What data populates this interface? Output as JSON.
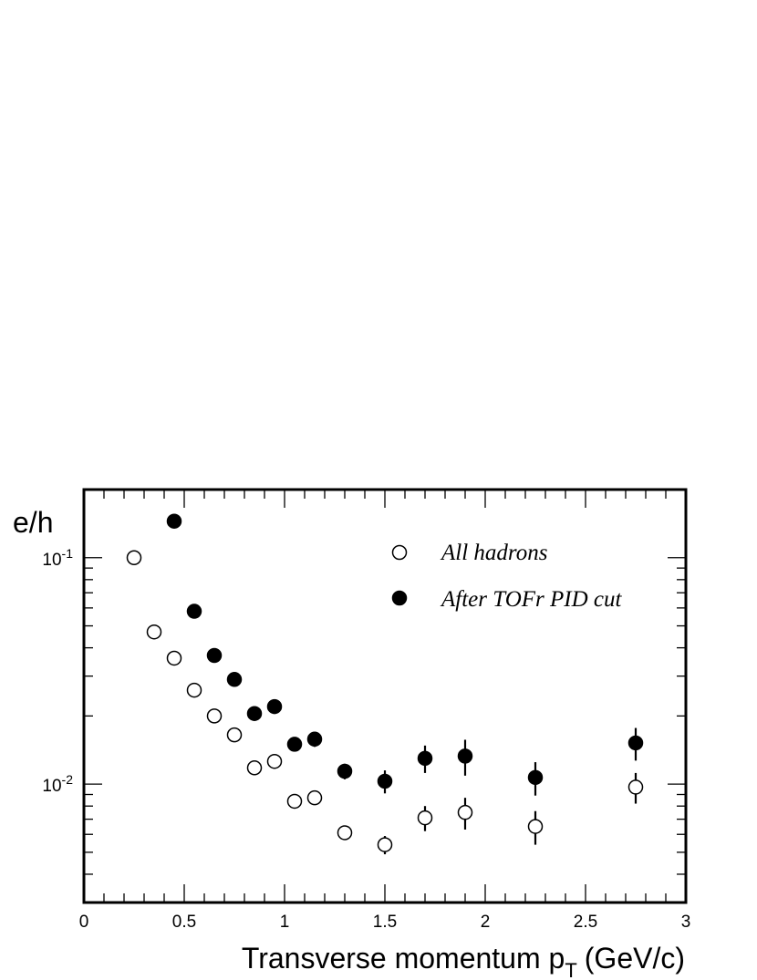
{
  "chart_data": {
    "type": "scatter",
    "title": "",
    "xlabel": "Transverse momentum p",
    "xlabel_subscript": "T",
    "xlabel_units": "(GeV/c)",
    "ylabel": "e/h",
    "xlim": [
      0,
      3
    ],
    "ylim": [
      0.003,
      0.2
    ],
    "yscale": "log",
    "grid": false,
    "legend_position": "top-right",
    "x_ticks": [
      {
        "value": 0,
        "label": "0"
      },
      {
        "value": 0.5,
        "label": "0.5"
      },
      {
        "value": 1,
        "label": "1"
      },
      {
        "value": 1.5,
        "label": "1.5"
      },
      {
        "value": 2,
        "label": "2"
      },
      {
        "value": 2.5,
        "label": "2.5"
      },
      {
        "value": 3,
        "label": "3"
      }
    ],
    "y_ticks": [
      {
        "value": 0.1,
        "base": "10",
        "exp": "-1"
      },
      {
        "value": 0.01,
        "base": "10",
        "exp": "-2"
      }
    ],
    "series": [
      {
        "name": "All hadrons",
        "marker": "open-circle",
        "color": "#000000",
        "points": [
          {
            "x": 0.25,
            "y": 0.1,
            "err": 0.002
          },
          {
            "x": 0.35,
            "y": 0.047,
            "err": 0.001
          },
          {
            "x": 0.45,
            "y": 0.036,
            "err": 0.001
          },
          {
            "x": 0.55,
            "y": 0.026,
            "err": 0.0006
          },
          {
            "x": 0.65,
            "y": 0.02,
            "err": 0.0005
          },
          {
            "x": 0.75,
            "y": 0.0165,
            "err": 0.0004
          },
          {
            "x": 0.85,
            "y": 0.0118,
            "err": 0.0003
          },
          {
            "x": 0.95,
            "y": 0.0126,
            "err": 0.0003
          },
          {
            "x": 1.05,
            "y": 0.0084,
            "err": 0.0004
          },
          {
            "x": 1.15,
            "y": 0.0087,
            "err": 0.0005
          },
          {
            "x": 1.3,
            "y": 0.0061,
            "err": 0.0004
          },
          {
            "x": 1.5,
            "y": 0.0054,
            "err": 0.0005
          },
          {
            "x": 1.7,
            "y": 0.0071,
            "err": 0.0009
          },
          {
            "x": 1.9,
            "y": 0.0075,
            "err": 0.0012
          },
          {
            "x": 2.25,
            "y": 0.0065,
            "err": 0.0011
          },
          {
            "x": 2.75,
            "y": 0.0097,
            "err": 0.0015
          }
        ]
      },
      {
        "name": "After TOFr PID cut",
        "marker": "filled-circle",
        "color": "#000000",
        "points": [
          {
            "x": 0.45,
            "y": 0.145,
            "err": 0.003
          },
          {
            "x": 0.55,
            "y": 0.058,
            "err": 0.0015
          },
          {
            "x": 0.65,
            "y": 0.037,
            "err": 0.001
          },
          {
            "x": 0.75,
            "y": 0.029,
            "err": 0.0008
          },
          {
            "x": 0.85,
            "y": 0.0205,
            "err": 0.0006
          },
          {
            "x": 0.95,
            "y": 0.022,
            "err": 0.0006
          },
          {
            "x": 1.05,
            "y": 0.015,
            "err": 0.0007
          },
          {
            "x": 1.15,
            "y": 0.0158,
            "err": 0.0012
          },
          {
            "x": 1.3,
            "y": 0.0114,
            "err": 0.0009
          },
          {
            "x": 1.5,
            "y": 0.0103,
            "err": 0.0012
          },
          {
            "x": 1.7,
            "y": 0.013,
            "err": 0.0018
          },
          {
            "x": 1.9,
            "y": 0.0133,
            "err": 0.0024
          },
          {
            "x": 2.25,
            "y": 0.0107,
            "err": 0.0018
          },
          {
            "x": 2.75,
            "y": 0.0152,
            "err": 0.0025
          }
        ]
      }
    ]
  }
}
